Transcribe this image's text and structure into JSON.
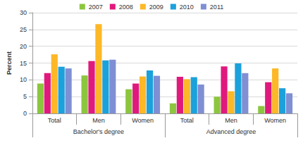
{
  "chart_data": {
    "type": "bar",
    "categories": [
      "Total",
      "Men",
      "Women",
      "Total",
      "Men",
      "Women"
    ],
    "category_groups": [
      {
        "label": "Bachelor's degree",
        "count": 3
      },
      {
        "label": "Advanced degree",
        "count": 3
      }
    ],
    "series": [
      {
        "name": "2007",
        "color": "#8cc63f",
        "values": [
          8.9,
          11.3,
          7.2,
          3.0,
          5.0,
          2.2
        ]
      },
      {
        "name": "2008",
        "color": "#e0197d",
        "values": [
          12.0,
          15.6,
          8.9,
          10.9,
          14.0,
          9.3
        ]
      },
      {
        "name": "2009",
        "color": "#fdb827",
        "values": [
          17.6,
          26.6,
          11.0,
          10.2,
          6.6,
          13.4
        ]
      },
      {
        "name": "2010",
        "color": "#1ba1dc",
        "values": [
          13.9,
          15.8,
          12.8,
          10.8,
          14.9,
          7.5
        ]
      },
      {
        "name": "2011",
        "color": "#7f8fd4",
        "values": [
          13.4,
          16.0,
          11.2,
          8.6,
          12.0,
          6.0
        ]
      }
    ],
    "y_label": "Percent",
    "ylim": [
      0,
      30
    ],
    "yticks": [
      0,
      5,
      10,
      15,
      20,
      25,
      30
    ],
    "grid": true,
    "legend": "top"
  }
}
